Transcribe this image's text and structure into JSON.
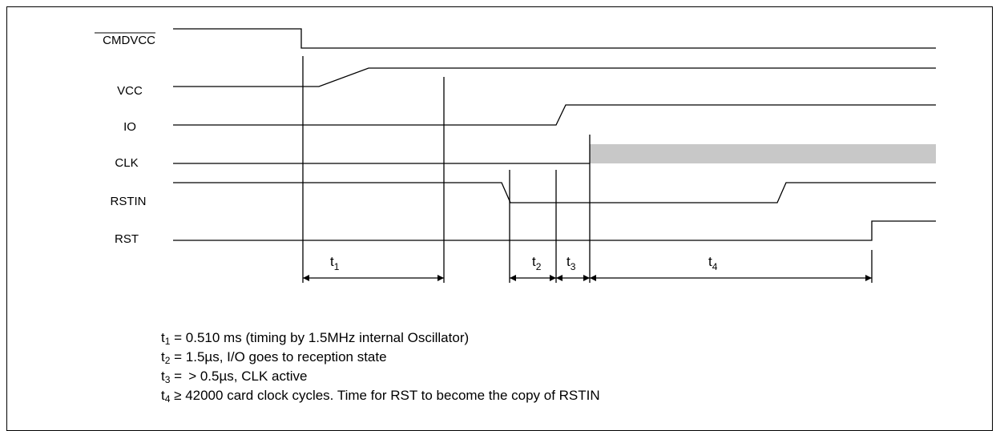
{
  "signals": {
    "cmdvcc": "CMDVCC",
    "vcc": "VCC",
    "io": "IO",
    "clk": "CLK",
    "rstin": "RSTIN",
    "rst": "RST"
  },
  "intervals": [
    {
      "base": "t",
      "sub": "1"
    },
    {
      "base": "t",
      "sub": "2"
    },
    {
      "base": "t",
      "sub": "3"
    },
    {
      "base": "t",
      "sub": "4"
    }
  ],
  "notes": [
    {
      "base": "t",
      "sub": "1",
      "text": " = 0.510 ms (timing by 1.5MHz internal Oscillator)"
    },
    {
      "base": "t",
      "sub": "2",
      "text": " = 1.5µs, I/O goes to reception state"
    },
    {
      "base": "t",
      "sub": "3",
      "text": " =  > 0.5µs, CLK active"
    },
    {
      "base": "t",
      "sub": "4",
      "text": " ≥ 42000 card clock cycles.  Time for RST to become the copy of RSTIN"
    }
  ],
  "colors": {
    "line": "#000000",
    "clock_active": "#c8c8c8"
  }
}
